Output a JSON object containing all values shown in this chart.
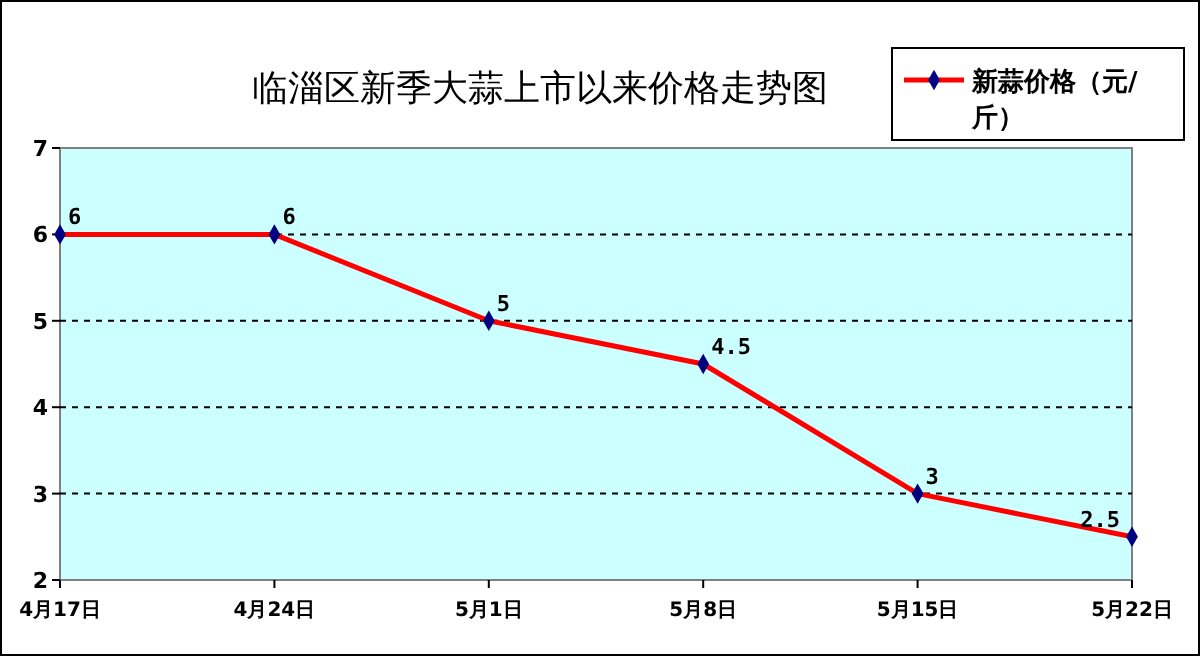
{
  "chart_data": {
    "type": "line",
    "title": "临淄区新季大蒜上市以来价格走势图",
    "categories": [
      "4月17日",
      "4月24日",
      "5月1日",
      "5月8日",
      "5月15日",
      "5月22日"
    ],
    "series": [
      {
        "name": "新蒜价格（元/斤）",
        "color": "#ff0000",
        "values": [
          6,
          6,
          5,
          4.5,
          3,
          2.5
        ]
      }
    ],
    "ylim": [
      2,
      7
    ],
    "yticks": [
      2,
      3,
      4,
      5,
      6,
      7
    ],
    "grid": "y",
    "legend": "top right",
    "marker": "diamond",
    "line_style": "solid",
    "data_labels": true
  }
}
